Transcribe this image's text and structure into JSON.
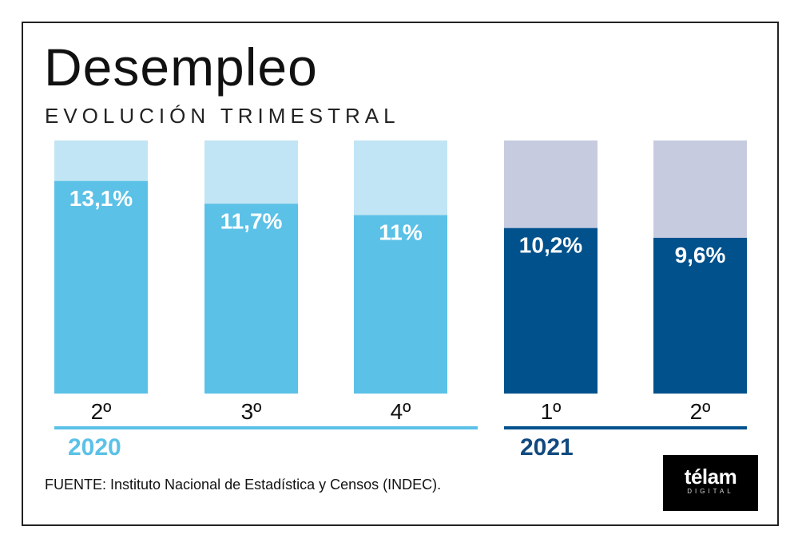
{
  "header": {
    "title": "Desempleo",
    "subtitle": "EVOLUCIÓN TRIMESTRAL"
  },
  "chart_data": {
    "type": "bar",
    "title": "Desempleo",
    "subtitle": "EVOLUCIÓN TRIMESTRAL",
    "unit": "%",
    "ylim": [
      0,
      15.6
    ],
    "bars": [
      {
        "quarter": "2º",
        "year": "2020",
        "value": 13.1,
        "label": "13,1%"
      },
      {
        "quarter": "3º",
        "year": "2020",
        "value": 11.7,
        "label": "11,7%"
      },
      {
        "quarter": "4º",
        "year": "2020",
        "value": 11.0,
        "label": "11%"
      },
      {
        "quarter": "1º",
        "year": "2021",
        "value": 10.2,
        "label": "10,2%"
      },
      {
        "quarter": "2º",
        "year": "2021",
        "value": 9.6,
        "label": "9,6%"
      }
    ],
    "groups": [
      {
        "year": "2020",
        "bar_color": "#5bc1e7",
        "track_color": "#c1e5f4",
        "label_color": "#5bc1e7"
      },
      {
        "year": "2021",
        "bar_color": "#00518c",
        "track_color": "#c6cbe0",
        "label_color": "#114a7f"
      }
    ]
  },
  "footer": {
    "source": "FUENTE: Instituto Nacional de Estadística y Censos (INDEC).",
    "logo_main": "télam",
    "logo_sub": "DIGITAL"
  }
}
